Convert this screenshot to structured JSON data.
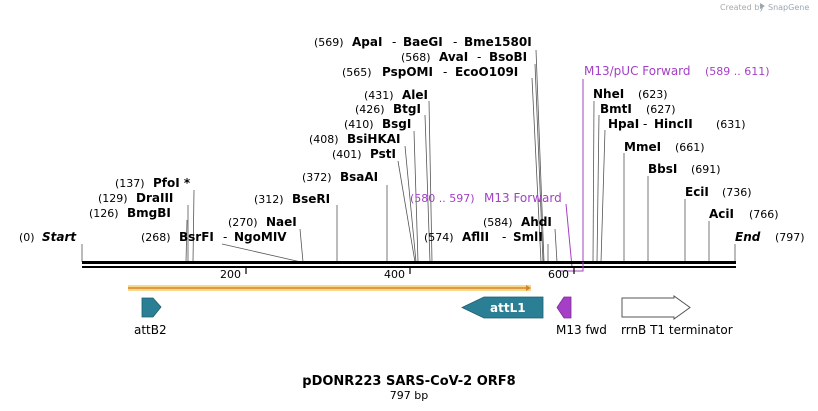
{
  "header": {
    "created_by": "Created by",
    "brand": "SnapGene"
  },
  "sequence": {
    "name": "pDONR223 SARS-CoV-2 ORF8",
    "length": "797 bp"
  },
  "ends": {
    "start_pos": "(0)",
    "start_label": "Start",
    "end_label": "End",
    "end_pos": "(797)"
  },
  "ruler": {
    "ticks": [
      "200",
      "400",
      "600"
    ]
  },
  "sites": {
    "apai": {
      "pos": "(569)",
      "name": "ApaI"
    },
    "baegi": {
      "name": "BaeGI"
    },
    "bme1580i": {
      "name": "Bme1580I"
    },
    "avai": {
      "pos": "(568)",
      "name": "AvaI"
    },
    "bsobi": {
      "name": "BsoBI"
    },
    "pspomi": {
      "pos": "(565)",
      "name": "PspOMI"
    },
    "ecoo109i": {
      "name": "EcoO109I"
    },
    "alei": {
      "pos": "(431)",
      "name": "AleI"
    },
    "btgi": {
      "pos": "(426)",
      "name": "BtgI"
    },
    "bsgi": {
      "pos": "(410)",
      "name": "BsgI"
    },
    "bsihkai": {
      "pos": "(408)",
      "name": "BsiHKAI"
    },
    "psti": {
      "pos": "(401)",
      "name": "PstI"
    },
    "bsaai": {
      "pos": "(372)",
      "name": "BsaAI"
    },
    "bseri": {
      "pos": "(312)",
      "name": "BseRI"
    },
    "naei": {
      "pos": "(270)",
      "name": "NaeI"
    },
    "bsrfi": {
      "pos": "(268)",
      "name": "BsrFI"
    },
    "ngomiv": {
      "name": "NgoMIV"
    },
    "pfoi": {
      "pos": "(137)",
      "name": "PfoI *"
    },
    "draiii": {
      "pos": "(129)",
      "name": "DraIII"
    },
    "bmgbi": {
      "pos": "(126)",
      "name": "BmgBI"
    },
    "ahdi": {
      "pos": "(584)",
      "name": "AhdI"
    },
    "aflii": {
      "pos": "(574)",
      "name": "AflII"
    },
    "smli": {
      "name": "SmlI"
    },
    "nhei": {
      "pos": "(623)",
      "name": "NheI"
    },
    "bmti": {
      "pos": "(627)",
      "name": "BmtI"
    },
    "hpai": {
      "name": "HpaI"
    },
    "hincii": {
      "name": "HincII",
      "pos": "(631)"
    },
    "mmei": {
      "pos": "(661)",
      "name": "MmeI"
    },
    "bbsi": {
      "name": "BbsI",
      "pos": "(691)"
    },
    "ecii": {
      "name": "EciI",
      "pos": "(736)"
    },
    "acii": {
      "name": "AciI",
      "pos": "(766)"
    }
  },
  "primers": {
    "m13puc": {
      "name": "M13/pUC Forward",
      "range": "(589 .. 611)"
    },
    "m13fwd": {
      "range": "(580 .. 597)",
      "name": "M13 Forward"
    }
  },
  "features": {
    "attb2": "attB2",
    "attl1": "attL1",
    "m13fwd": "M13 fwd",
    "rrnb": "rrnB T1 terminator"
  },
  "colors": {
    "feature_teal": "#2a7f95",
    "primer_purple": "#a43fc6",
    "orf_yellow": "#f6d98c",
    "orf_orange": "#d9822b",
    "backbone": "#000000"
  }
}
